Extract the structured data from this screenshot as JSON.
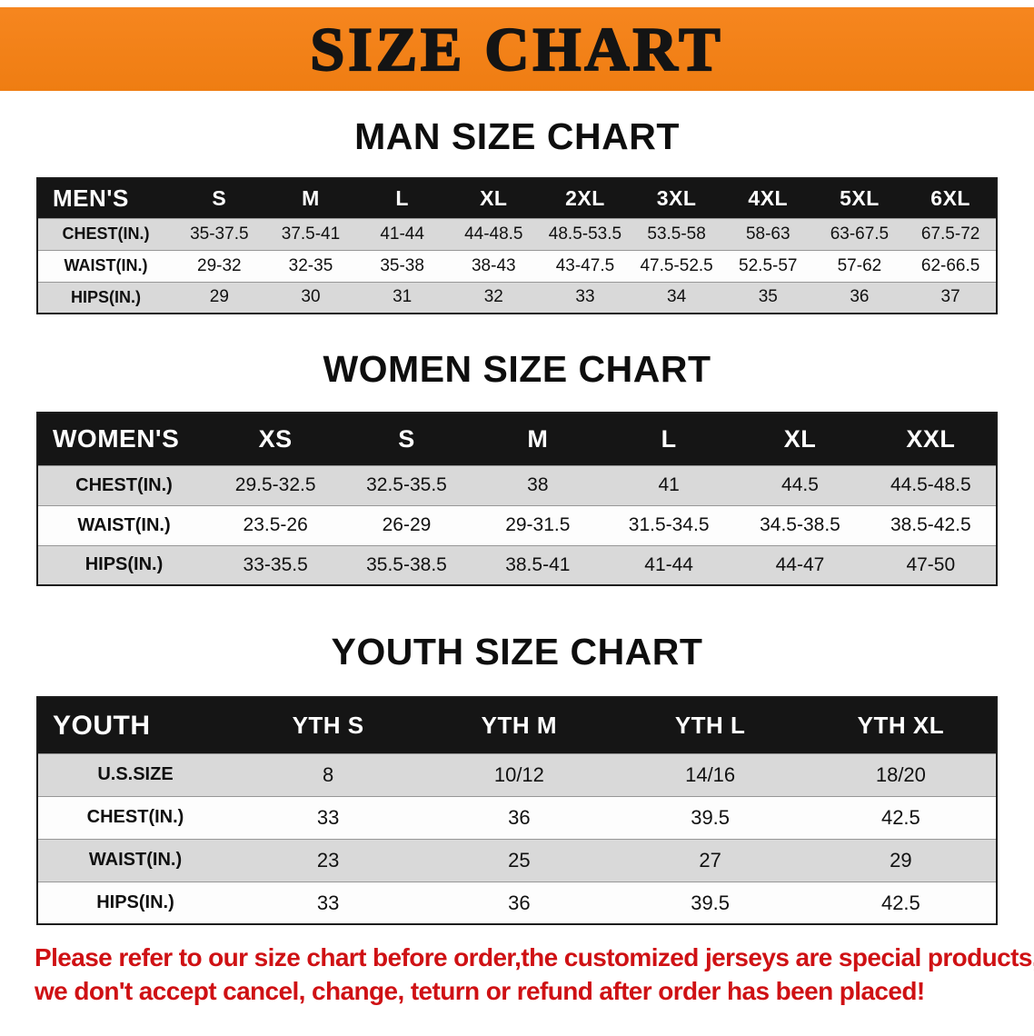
{
  "banner": {
    "title": "SIZE CHART"
  },
  "men": {
    "heading": "MAN SIZE CHART",
    "header": [
      "MEN'S",
      "S",
      "M",
      "L",
      "XL",
      "2XL",
      "3XL",
      "4XL",
      "5XL",
      "6XL"
    ],
    "rows": [
      [
        "CHEST(IN.)",
        "35-37.5",
        "37.5-41",
        "41-44",
        "44-48.5",
        "48.5-53.5",
        "53.5-58",
        "58-63",
        "63-67.5",
        "67.5-72"
      ],
      [
        "WAIST(IN.)",
        "29-32",
        "32-35",
        "35-38",
        "38-43",
        "43-47.5",
        "47.5-52.5",
        "52.5-57",
        "57-62",
        "62-66.5"
      ],
      [
        "HIPS(IN.)",
        "29",
        "30",
        "31",
        "32",
        "33",
        "34",
        "35",
        "36",
        "37"
      ]
    ]
  },
  "women": {
    "heading": "WOMEN SIZE CHART",
    "header": [
      "WOMEN'S",
      "XS",
      "S",
      "M",
      "L",
      "XL",
      "XXL"
    ],
    "rows": [
      [
        "CHEST(IN.)",
        "29.5-32.5",
        "32.5-35.5",
        "38",
        "41",
        "44.5",
        "44.5-48.5"
      ],
      [
        "WAIST(IN.)",
        "23.5-26",
        "26-29",
        "29-31.5",
        "31.5-34.5",
        "34.5-38.5",
        "38.5-42.5"
      ],
      [
        "HIPS(IN.)",
        "33-35.5",
        "35.5-38.5",
        "38.5-41",
        "41-44",
        "44-47",
        "47-50"
      ]
    ]
  },
  "youth": {
    "heading": "YOUTH SIZE CHART",
    "header": [
      "YOUTH",
      "YTH S",
      "YTH M",
      "YTH L",
      "YTH XL"
    ],
    "rows": [
      [
        "U.S.SIZE",
        "8",
        "10/12",
        "14/16",
        "18/20"
      ],
      [
        "CHEST(IN.)",
        "33",
        "36",
        "39.5",
        "42.5"
      ],
      [
        "WAIST(IN.)",
        "23",
        "25",
        "27",
        "29"
      ],
      [
        "HIPS(IN.)",
        "33",
        "36",
        "39.5",
        "42.5"
      ]
    ]
  },
  "footer": {
    "line1": "Please refer to our size chart before order,the customized jerseys are special products,",
    "line2": "we don't accept cancel, change, teturn or refund after order has been placed!"
  },
  "colors": {
    "banner_bg": "#f6861f",
    "header_bg": "#151515",
    "row_alt_bg": "#d9d9d9",
    "note_color": "#cf1114"
  }
}
